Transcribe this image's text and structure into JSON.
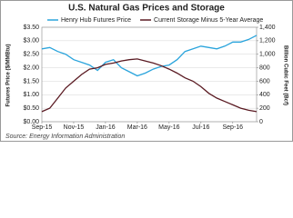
{
  "chart_data": {
    "type": "line",
    "title": "U.S. Natural Gas Prices and Storage",
    "y_label": "Futures Price ($/MMBtu)",
    "y2_label": "Billion Cubic Feet (Bcf)",
    "source": "Source: Energy Information Administration",
    "categories": [
      "Sep-15",
      null,
      null,
      null,
      "Nov-15",
      null,
      null,
      null,
      "Jan-16",
      null,
      null,
      null,
      "Mar-16",
      null,
      null,
      null,
      "May-16",
      null,
      null,
      null,
      "Jul-16",
      null,
      null,
      null,
      "Sep-16",
      null,
      null,
      null
    ],
    "series": [
      {
        "name": "Henry Hub Futures Price",
        "color": "#2aa4dc",
        "axis": "y",
        "values": [
          2.7,
          2.75,
          2.6,
          2.5,
          2.3,
          2.2,
          2.1,
          1.9,
          2.2,
          2.3,
          2.0,
          1.85,
          1.7,
          1.8,
          1.95,
          2.05,
          2.1,
          2.3,
          2.6,
          2.7,
          2.8,
          2.75,
          2.7,
          2.8,
          2.95,
          2.95,
          3.05,
          3.2
        ]
      },
      {
        "name": "Current Storage Minus 5-Year Average",
        "color": "#5a1a22",
        "axis": "y2",
        "values": [
          150,
          200,
          350,
          500,
          600,
          700,
          780,
          800,
          850,
          870,
          900,
          920,
          930,
          900,
          870,
          830,
          780,
          720,
          650,
          600,
          520,
          420,
          350,
          300,
          250,
          200,
          170,
          150
        ]
      }
    ],
    "ylim": [
      0,
      3.5
    ],
    "yticks": [
      {
        "value": 0,
        "label": "$0.00"
      },
      {
        "value": 0.5,
        "label": "$0.50"
      },
      {
        "value": 1,
        "label": "$1.00"
      },
      {
        "value": 1.5,
        "label": "$1.50"
      },
      {
        "value": 2,
        "label": "$2.00"
      },
      {
        "value": 2.5,
        "label": "$2.50"
      },
      {
        "value": 3,
        "label": "$3.00"
      },
      {
        "value": 3.5,
        "label": "$3.50"
      }
    ],
    "y2lim": [
      0,
      1400
    ],
    "y2ticks": [
      0,
      200,
      400,
      600,
      800,
      {
        "value": 1000,
        "label": "1,000"
      },
      {
        "value": 1200,
        "label": "1,200"
      },
      {
        "value": 1400,
        "label": "1,400"
      }
    ],
    "grid": true
  }
}
